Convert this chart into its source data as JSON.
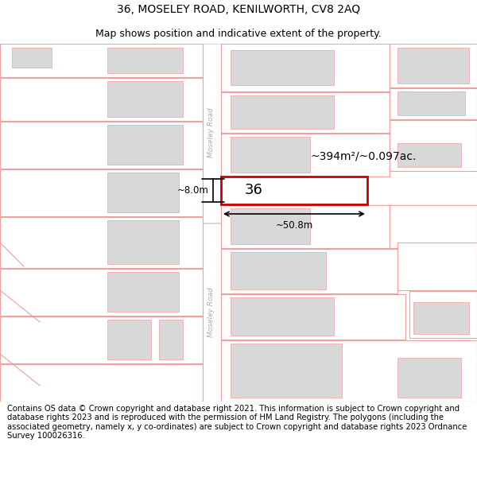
{
  "title_line1": "36, MOSELEY ROAD, KENILWORTH, CV8 2AQ",
  "title_line2": "Map shows position and indicative extent of the property.",
  "footer_text": "Contains OS data © Crown copyright and database right 2021. This information is subject to Crown copyright and database rights 2023 and is reproduced with the permission of HM Land Registry. The polygons (including the associated geometry, namely x, y co-ordinates) are subject to Crown copyright and database rights 2023 Ordnance Survey 100026316.",
  "background_color": "#ffffff",
  "map_background": "#ffffff",
  "building_fill": "#d8d8d8",
  "plot_edge_light": "#f0a0a0",
  "plot_edge_highlight": "#cc0000",
  "road_color": "#ffffff",
  "road_edge": "#c8c8c8",
  "area_label": "~394m²/~0.097ac.",
  "parcel_label": "36",
  "dim_width": "~50.8m",
  "dim_height": "~8.0m",
  "title_fontsize": 10,
  "subtitle_fontsize": 9,
  "footer_fontsize": 7.2,
  "road_label_color": "#aaaaaa",
  "road_label_size": 6.5
}
